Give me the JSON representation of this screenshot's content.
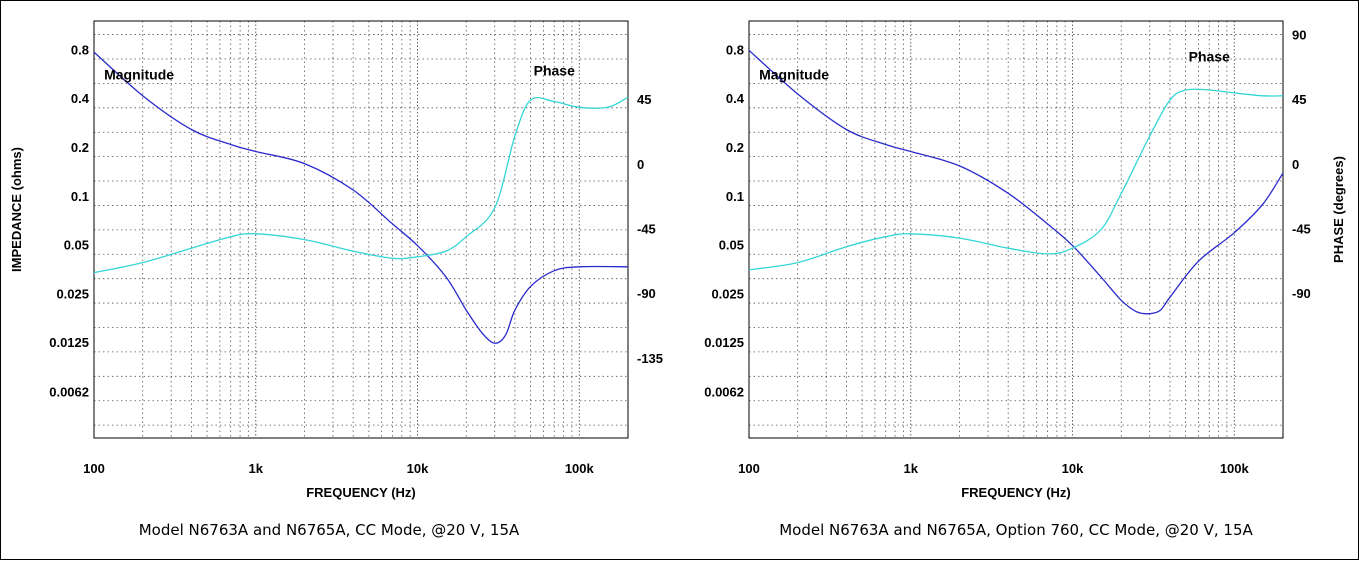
{
  "colors": {
    "magnitude": "#2a2acc",
    "phase": "#33d6d6",
    "grid": "#555555"
  },
  "chart_data": [
    {
      "type": "line",
      "caption": "Model N6763A and N6765A, CC Mode, @20 V, 15A",
      "xlabel": "FREQUENCY (Hz)",
      "ylabel_left": "IMPEDANCE (ohms)",
      "ylabel_right": "",
      "x_scale": "log",
      "xlim": [
        100,
        200000
      ],
      "x_ticks": [
        {
          "value": 100,
          "label": "100"
        },
        {
          "value": 1000,
          "label": "1k"
        },
        {
          "value": 10000,
          "label": "10k"
        },
        {
          "value": 100000,
          "label": "100k"
        }
      ],
      "y_left_scale": "log2",
      "y_left_ticks": [
        {
          "value": 0.8,
          "label": "0.8"
        },
        {
          "value": 0.4,
          "label": "0.4"
        },
        {
          "value": 0.2,
          "label": "0.2"
        },
        {
          "value": 0.1,
          "label": "0.1"
        },
        {
          "value": 0.05,
          "label": "0.05"
        },
        {
          "value": 0.025,
          "label": "0.025"
        },
        {
          "value": 0.0125,
          "label": "0.0125"
        },
        {
          "value": 0.0062,
          "label": "0.0062"
        }
      ],
      "y_right_ticks": [
        {
          "value": 45,
          "label": "45"
        },
        {
          "value": 0,
          "label": "0"
        },
        {
          "value": -45,
          "label": "-45"
        },
        {
          "value": -90,
          "label": "-90"
        },
        {
          "value": -135,
          "label": "-135"
        }
      ],
      "grid": true,
      "series": [
        {
          "name": "Magnitude",
          "axis": "left",
          "points": [
            [
              100,
              0.78
            ],
            [
              200,
              0.42
            ],
            [
              400,
              0.26
            ],
            [
              700,
              0.21
            ],
            [
              1000,
              0.19
            ],
            [
              2000,
              0.16
            ],
            [
              4000,
              0.11
            ],
            [
              7000,
              0.068
            ],
            [
              10000,
              0.05
            ],
            [
              15000,
              0.032
            ],
            [
              20000,
              0.02
            ],
            [
              25000,
              0.0145
            ],
            [
              30000,
              0.0125
            ],
            [
              35000,
              0.014
            ],
            [
              40000,
              0.02
            ],
            [
              50000,
              0.028
            ],
            [
              70000,
              0.035
            ],
            [
              100000,
              0.037
            ],
            [
              200000,
              0.037
            ]
          ],
          "label_at": [
            190,
            0.53
          ]
        },
        {
          "name": "Phase",
          "axis": "right",
          "points": [
            [
              100,
              -75
            ],
            [
              200,
              -68
            ],
            [
              400,
              -58
            ],
            [
              700,
              -50
            ],
            [
              1000,
              -48
            ],
            [
              2000,
              -52
            ],
            [
              4000,
              -60
            ],
            [
              7000,
              -65
            ],
            [
              10000,
              -64
            ],
            [
              15000,
              -60
            ],
            [
              20000,
              -50
            ],
            [
              30000,
              -30
            ],
            [
              40000,
              20
            ],
            [
              50000,
              45
            ],
            [
              70000,
              44
            ],
            [
              100000,
              40
            ],
            [
              150000,
              40
            ],
            [
              200000,
              47
            ]
          ],
          "label_at": [
            70000,
            62
          ]
        }
      ]
    },
    {
      "type": "line",
      "caption": "Model N6763A and N6765A, Option 760, CC Mode, @20 V, 15A",
      "xlabel": "FREQUENCY (Hz)",
      "ylabel_left": "",
      "ylabel_right": "PHASE (degrees)",
      "x_scale": "log",
      "xlim": [
        100,
        200000
      ],
      "x_ticks": [
        {
          "value": 100,
          "label": "100"
        },
        {
          "value": 1000,
          "label": "1k"
        },
        {
          "value": 10000,
          "label": "10k"
        },
        {
          "value": 100000,
          "label": "100k"
        }
      ],
      "y_left_scale": "log2",
      "y_left_ticks": [
        {
          "value": 0.8,
          "label": "0.8"
        },
        {
          "value": 0.4,
          "label": "0.4"
        },
        {
          "value": 0.2,
          "label": "0.2"
        },
        {
          "value": 0.1,
          "label": "0.1"
        },
        {
          "value": 0.05,
          "label": "0.05"
        },
        {
          "value": 0.025,
          "label": "0.025"
        },
        {
          "value": 0.0125,
          "label": "0.0125"
        },
        {
          "value": 0.0062,
          "label": "0.0062"
        }
      ],
      "y_right_ticks": [
        {
          "value": 90,
          "label": "90"
        },
        {
          "value": 45,
          "label": "45"
        },
        {
          "value": 0,
          "label": "0"
        },
        {
          "value": -45,
          "label": "-45"
        },
        {
          "value": -90,
          "label": "-90"
        }
      ],
      "grid": true,
      "series": [
        {
          "name": "Magnitude",
          "axis": "left",
          "points": [
            [
              100,
              0.8
            ],
            [
              200,
              0.43
            ],
            [
              400,
              0.26
            ],
            [
              700,
              0.21
            ],
            [
              1000,
              0.19
            ],
            [
              2000,
              0.155
            ],
            [
              4000,
              0.105
            ],
            [
              7000,
              0.068
            ],
            [
              10000,
              0.05
            ],
            [
              15000,
              0.032
            ],
            [
              20000,
              0.023
            ],
            [
              25000,
              0.0195
            ],
            [
              30000,
              0.019
            ],
            [
              35000,
              0.02
            ],
            [
              40000,
              0.024
            ],
            [
              60000,
              0.04
            ],
            [
              100000,
              0.06
            ],
            [
              150000,
              0.09
            ],
            [
              200000,
              0.14
            ]
          ],
          "label_at": [
            190,
            0.53
          ]
        },
        {
          "name": "Phase",
          "axis": "right",
          "points": [
            [
              100,
              -73
            ],
            [
              200,
              -68
            ],
            [
              400,
              -57
            ],
            [
              700,
              -50
            ],
            [
              1000,
              -48
            ],
            [
              2000,
              -51
            ],
            [
              4000,
              -58
            ],
            [
              7000,
              -62
            ],
            [
              10000,
              -58
            ],
            [
              15000,
              -45
            ],
            [
              20000,
              -20
            ],
            [
              30000,
              20
            ],
            [
              40000,
              45
            ],
            [
              50000,
              52
            ],
            [
              70000,
              52
            ],
            [
              100000,
              50
            ],
            [
              150000,
              48
            ],
            [
              200000,
              48
            ]
          ],
          "label_at": [
            70000,
            72
          ]
        }
      ]
    }
  ]
}
